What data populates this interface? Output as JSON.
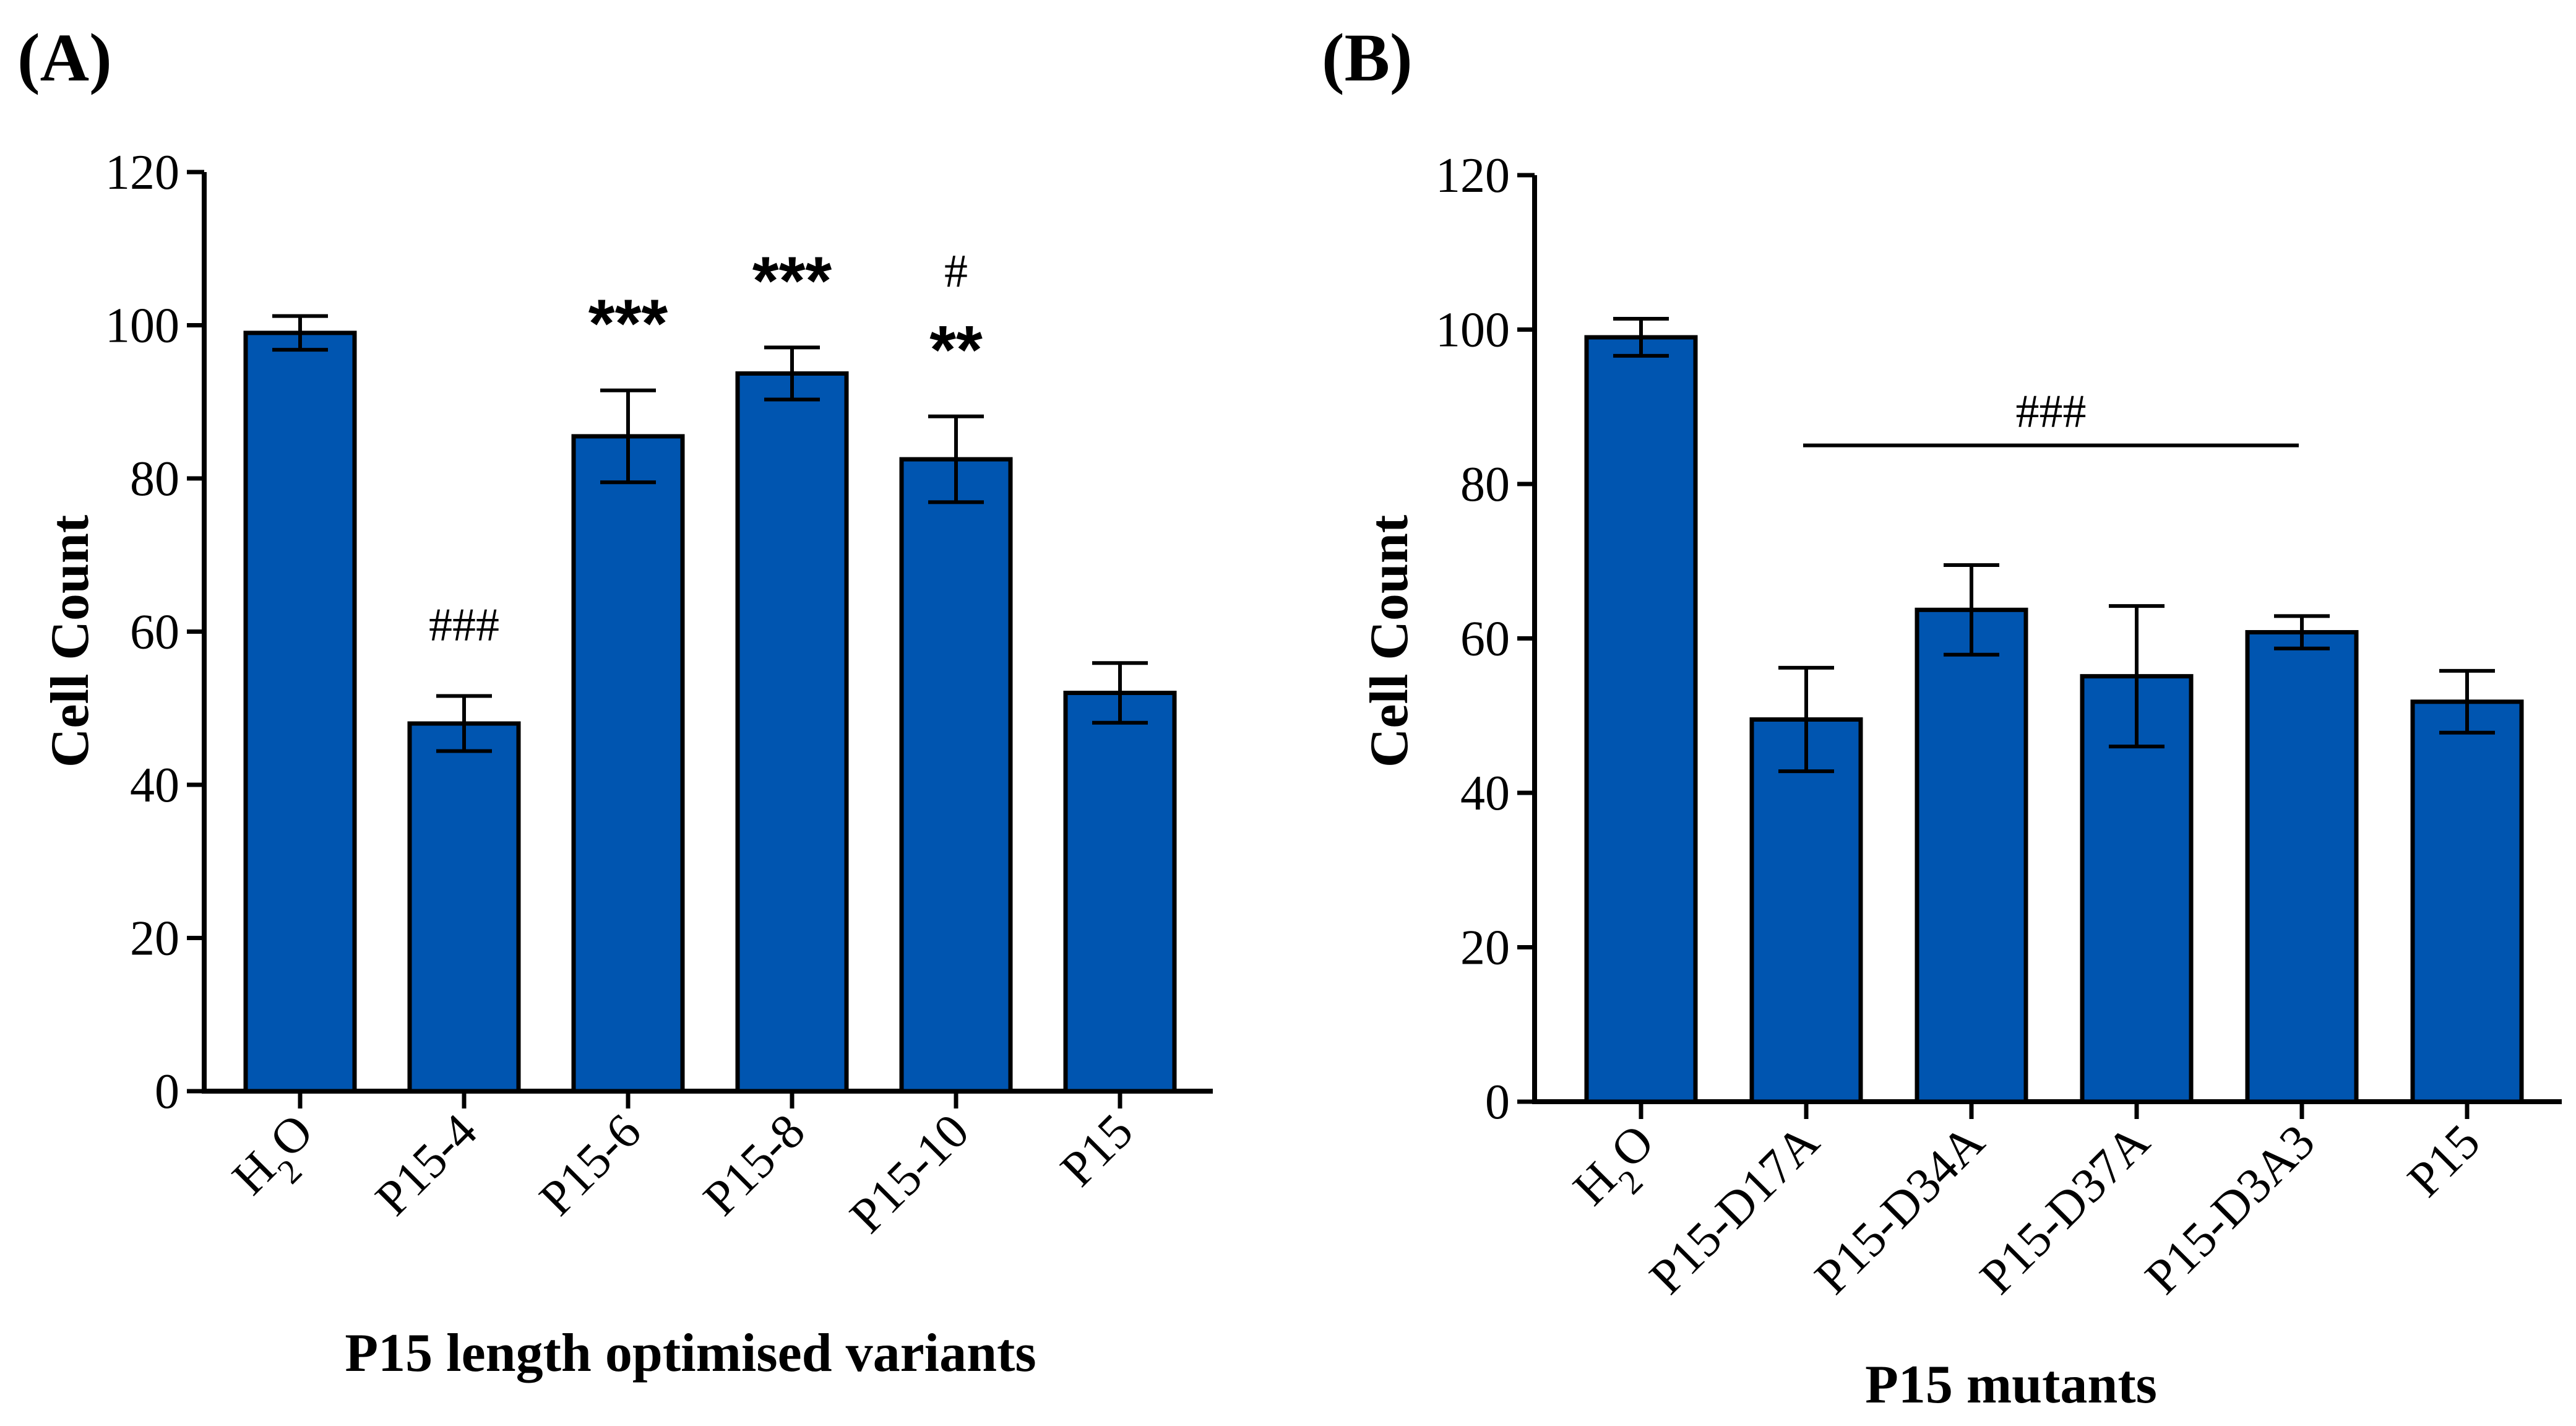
{
  "chart_data": [
    {
      "type": "bar",
      "panel_label": "(A)",
      "xlabel": "P15 length optimised variants",
      "ylabel": "Cell Count",
      "ylim": [
        0,
        120
      ],
      "yticks": [
        "0",
        "20",
        "40",
        "60",
        "80",
        "100",
        "120"
      ],
      "categories": [
        "H2O",
        "P15-4",
        "P15-6",
        "P15-8",
        "P15-10",
        "P15"
      ],
      "values": [
        99,
        48,
        85.5,
        93.7,
        82.5,
        52
      ],
      "errors": [
        2.2,
        3.6,
        6,
        3.4,
        5.6,
        3.9
      ],
      "bar_color": "#0055b0",
      "annotations": [
        {
          "category": "P15-4",
          "hash": "###",
          "stars": ""
        },
        {
          "category": "P15-6",
          "hash": "",
          "stars": "***"
        },
        {
          "category": "P15-8",
          "hash": "",
          "stars": "***"
        },
        {
          "category": "P15-10",
          "hash": "#",
          "stars": "**"
        }
      ]
    },
    {
      "type": "bar",
      "panel_label": "(B)",
      "xlabel": "P15 mutants",
      "ylabel": "Cell Count",
      "ylim": [
        0,
        120
      ],
      "yticks": [
        "0",
        "20",
        "40",
        "60",
        "80",
        "100",
        "120"
      ],
      "categories": [
        "H2O",
        "P15-D17A",
        "P15-D34A",
        "P15-D37A",
        "P15-D3A3",
        "P15"
      ],
      "values": [
        99,
        49.5,
        63.7,
        55.1,
        60.8,
        51.8
      ],
      "errors": [
        2.4,
        6.7,
        5.8,
        9.1,
        2.1,
        4
      ],
      "bar_color": "#0055b0",
      "bracket": {
        "from": "P15-D17A",
        "to": "P15-D3A3",
        "label": "###",
        "y": 85
      }
    }
  ]
}
